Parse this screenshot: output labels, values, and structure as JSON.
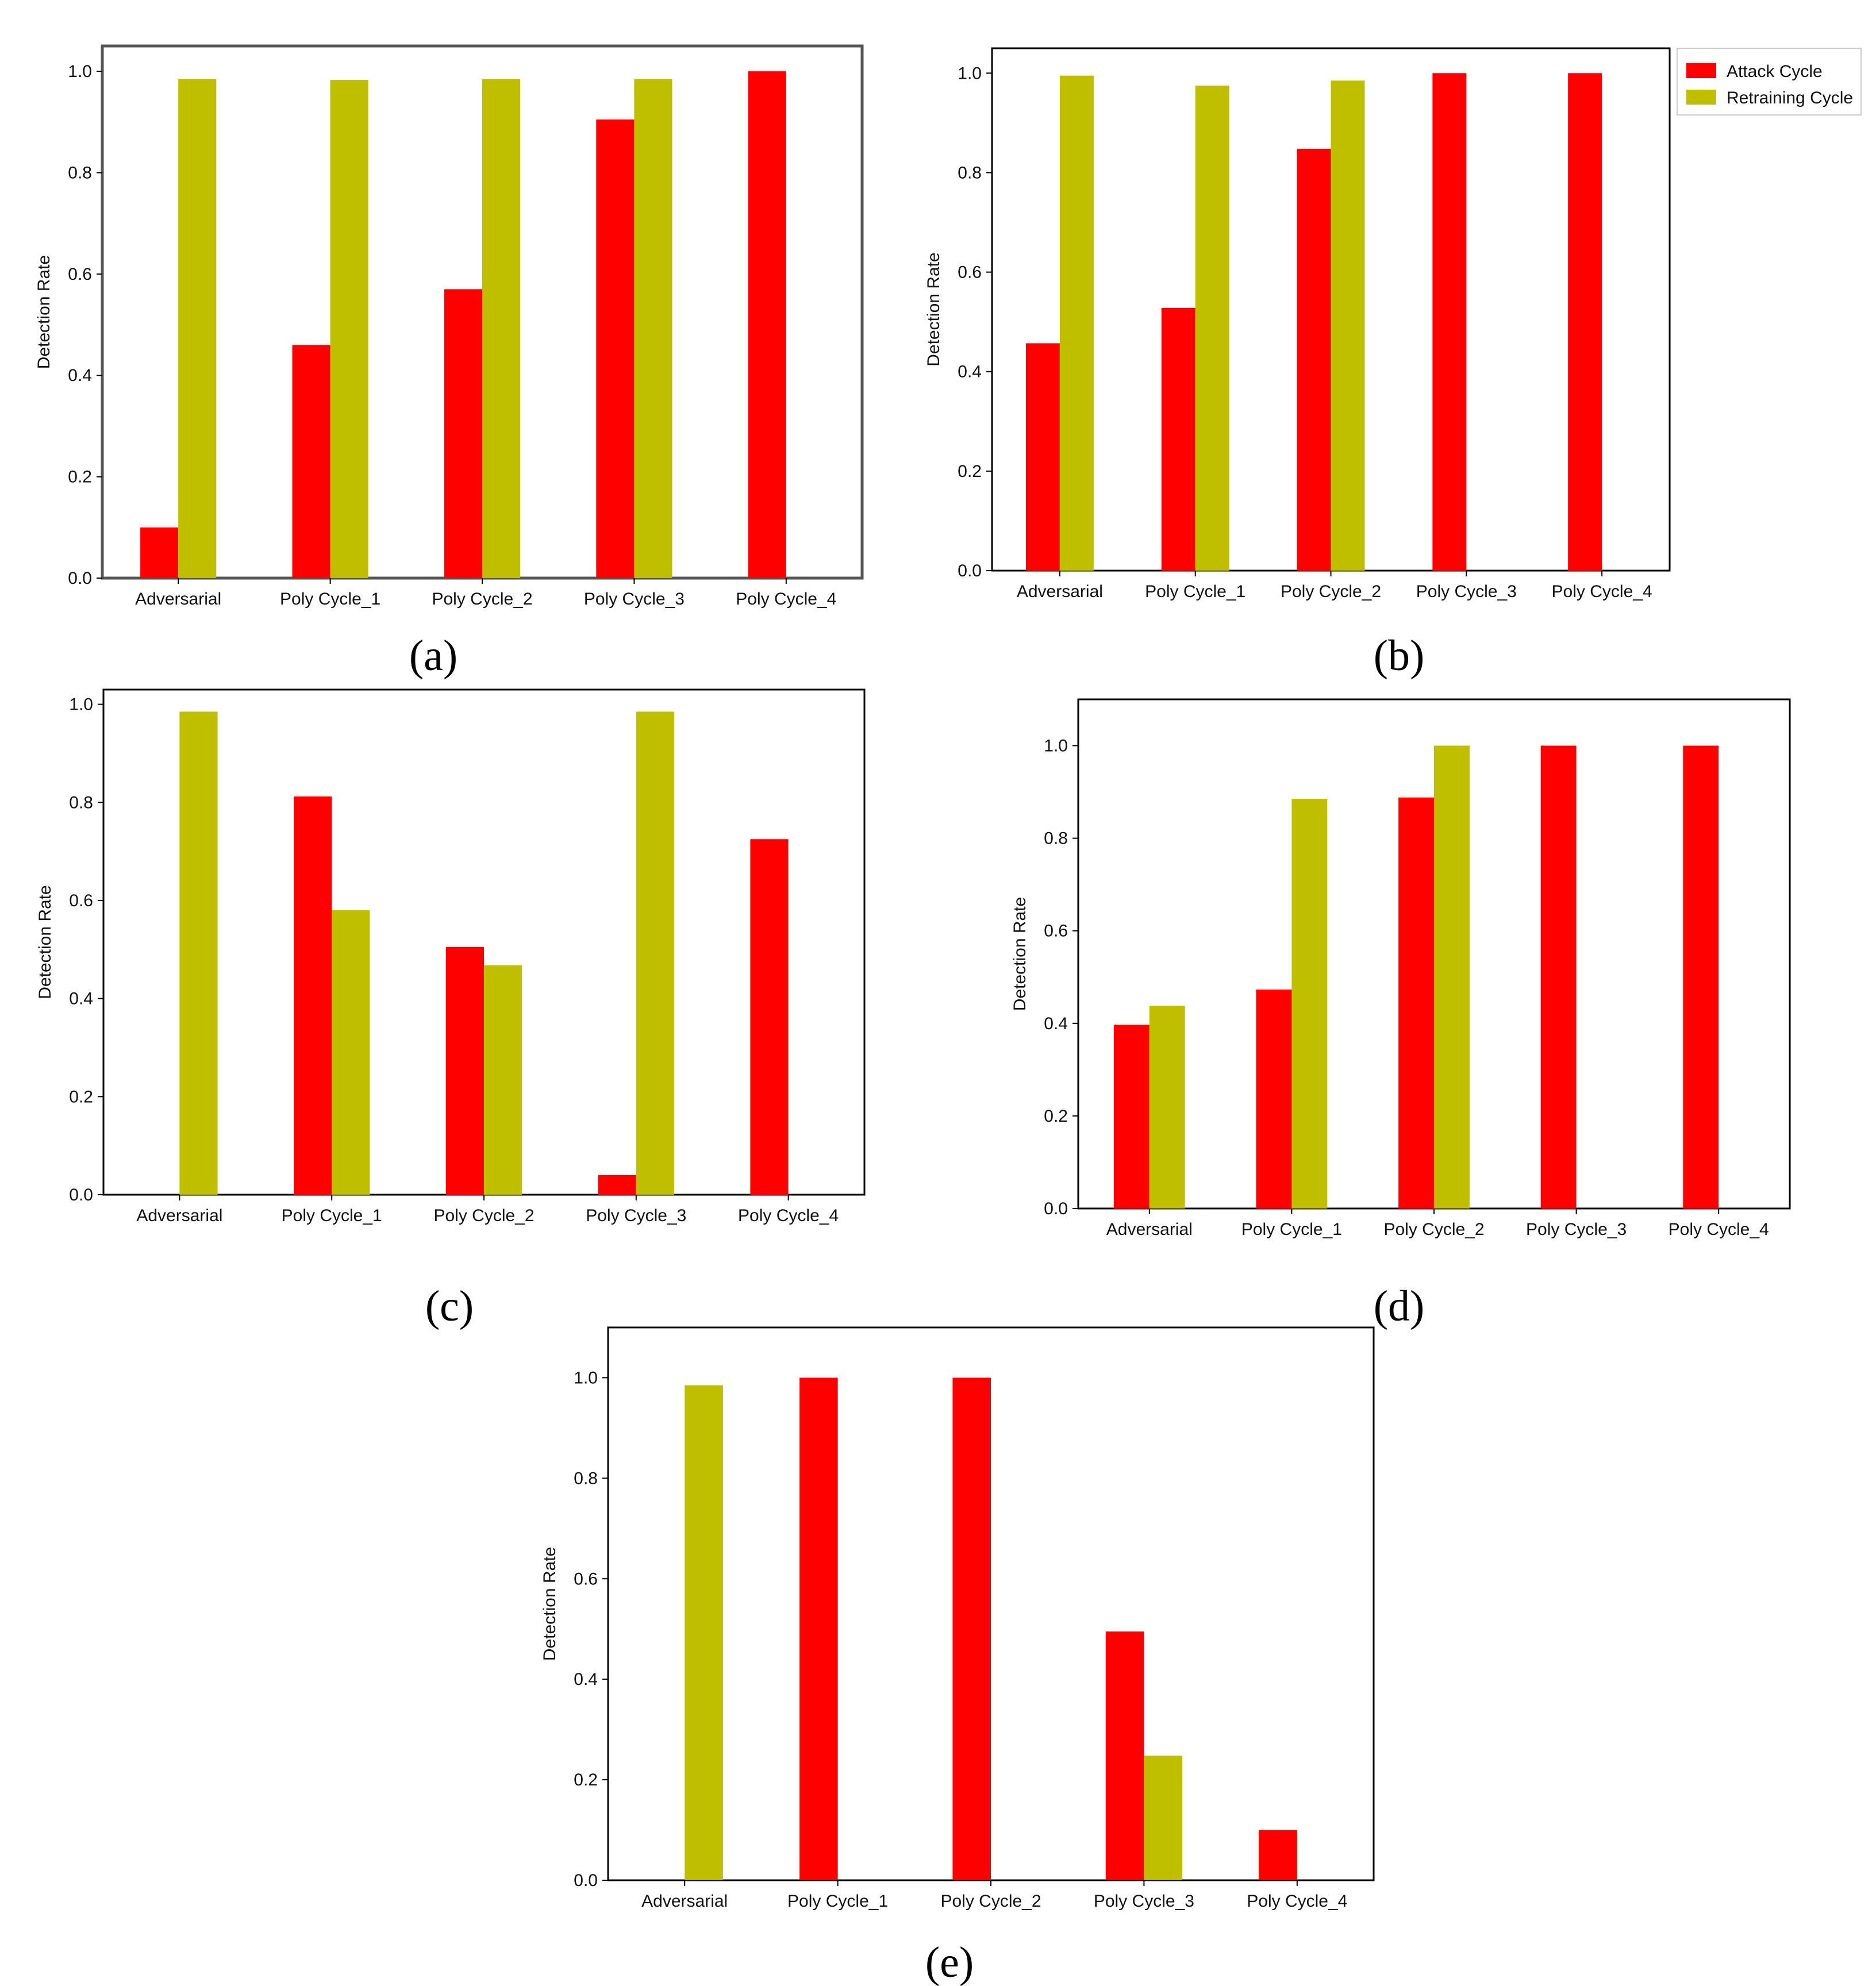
{
  "figure": {
    "legend": {
      "entries": [
        {
          "label": "Attack Cycle",
          "color": "#ff0000"
        },
        {
          "label": "Retraining Cycle",
          "color": "#bfbf00"
        }
      ]
    }
  },
  "chart_data": [
    {
      "id": "a",
      "panel_label": "(a)",
      "type": "bar",
      "categories": [
        "Adversarial",
        "Poly Cycle_1",
        "Poly Cycle_2",
        "Poly Cycle_3",
        "Poly Cycle_4"
      ],
      "series": [
        {
          "name": "Attack Cycle",
          "color": "#ff0000",
          "values": [
            0.1,
            0.46,
            0.57,
            0.905,
            1.0
          ]
        },
        {
          "name": "Retraining Cycle",
          "color": "#bfbf00",
          "values": [
            0.985,
            0.983,
            0.985,
            0.985,
            0
          ]
        }
      ],
      "ylabel": "Detection Rate",
      "ylim": [
        0,
        1.05
      ],
      "yticks": [
        "0.0",
        "0.2",
        "0.4",
        "0.6",
        "0.8",
        "1.0"
      ]
    },
    {
      "id": "b",
      "panel_label": "(b)",
      "type": "bar",
      "categories": [
        "Adversarial",
        "Poly Cycle_1",
        "Poly Cycle_2",
        "Poly Cycle_3",
        "Poly Cycle_4"
      ],
      "series": [
        {
          "name": "Attack Cycle",
          "color": "#ff0000",
          "values": [
            0.457,
            0.528,
            0.848,
            1.0,
            1.0
          ]
        },
        {
          "name": "Retraining Cycle",
          "color": "#bfbf00",
          "values": [
            0.995,
            0.975,
            0.985,
            0,
            0
          ]
        }
      ],
      "ylabel": "Detection Rate",
      "ylim": [
        0,
        1.05
      ],
      "yticks": [
        "0.0",
        "0.2",
        "0.4",
        "0.6",
        "0.8",
        "1.0"
      ],
      "legend": "outside-right"
    },
    {
      "id": "c",
      "panel_label": "(c)",
      "type": "bar",
      "categories": [
        "Adversarial",
        "Poly Cycle_1",
        "Poly Cycle_2",
        "Poly Cycle_3",
        "Poly Cycle_4"
      ],
      "series": [
        {
          "name": "Attack Cycle",
          "color": "#ff0000",
          "values": [
            0,
            0.812,
            0.505,
            0.04,
            0.725
          ]
        },
        {
          "name": "Retraining Cycle",
          "color": "#bfbf00",
          "values": [
            0.985,
            0.58,
            0.468,
            0.985,
            0
          ]
        }
      ],
      "ylabel": "Detection Rate",
      "ylim": [
        0,
        1.03
      ],
      "yticks": [
        "0.0",
        "0.2",
        "0.4",
        "0.6",
        "0.8",
        "1.0"
      ]
    },
    {
      "id": "d",
      "panel_label": "(d)",
      "type": "bar",
      "categories": [
        "Adversarial",
        "Poly Cycle_1",
        "Poly Cycle_2",
        "Poly Cycle_3",
        "Poly Cycle_4"
      ],
      "series": [
        {
          "name": "Attack Cycle",
          "color": "#ff0000",
          "values": [
            0.397,
            0.473,
            0.888,
            1.0,
            1.0
          ]
        },
        {
          "name": "Retraining Cycle",
          "color": "#bfbf00",
          "values": [
            0.438,
            0.885,
            1.0,
            0,
            0
          ]
        }
      ],
      "ylabel": "Detection Rate",
      "ylim": [
        0,
        1.1
      ],
      "yticks": [
        "0.0",
        "0.2",
        "0.4",
        "0.6",
        "0.8",
        "1.0"
      ]
    },
    {
      "id": "e",
      "panel_label": "(e)",
      "type": "bar",
      "categories": [
        "Adversarial",
        "Poly Cycle_1",
        "Poly Cycle_2",
        "Poly Cycle_3",
        "Poly Cycle_4"
      ],
      "series": [
        {
          "name": "Attack Cycle",
          "color": "#ff0000",
          "values": [
            0,
            1.0,
            1.0,
            0.495,
            0.1
          ]
        },
        {
          "name": "Retraining Cycle",
          "color": "#bfbf00",
          "values": [
            0.985,
            0,
            0,
            0.248,
            0
          ]
        }
      ],
      "ylabel": "Detection Rate",
      "ylim": [
        0,
        1.1
      ],
      "yticks": [
        "0.0",
        "0.2",
        "0.4",
        "0.6",
        "0.8",
        "1.0"
      ]
    }
  ]
}
